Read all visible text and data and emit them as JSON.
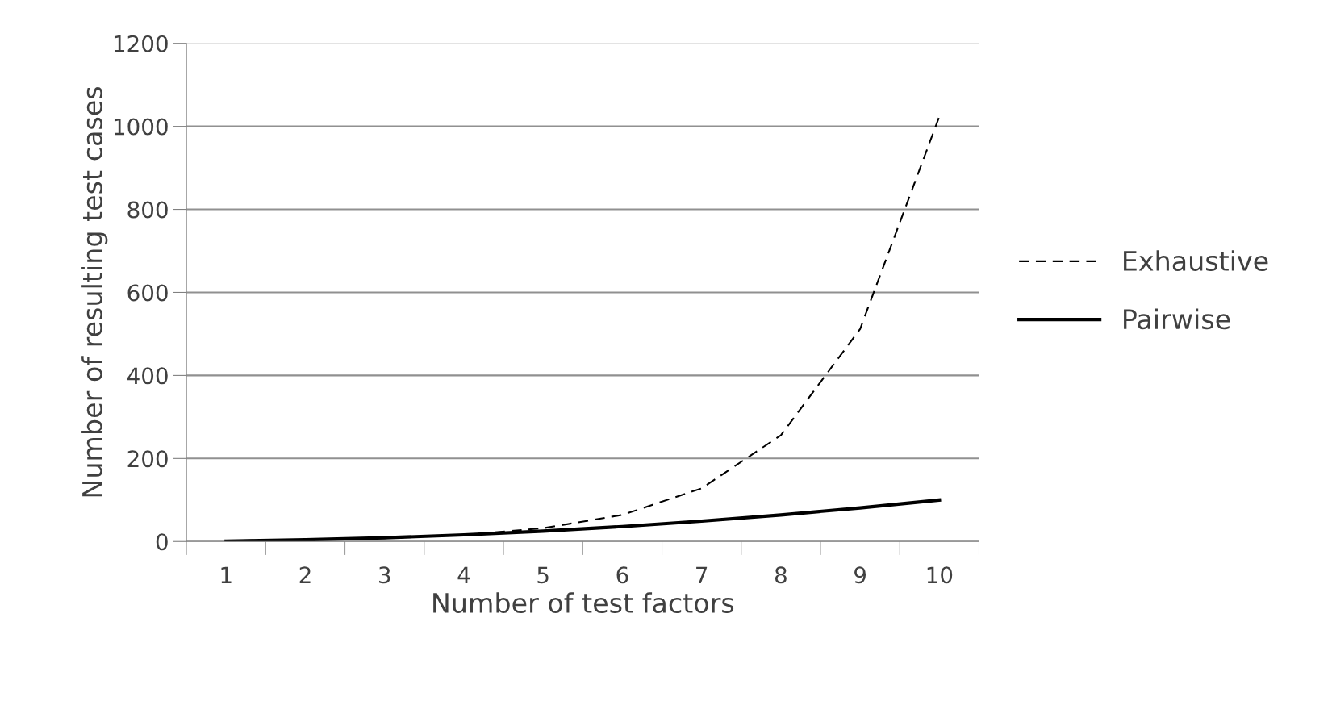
{
  "chart_data": {
    "type": "line",
    "xlabel": "Number of test factors",
    "ylabel": "Number of resulting test cases",
    "categories": [
      "1",
      "2",
      "3",
      "4",
      "5",
      "6",
      "7",
      "8",
      "9",
      "10"
    ],
    "series": [
      {
        "name": "Exhaustive",
        "color": "#000000",
        "line_style": "dashed",
        "values": [
          2,
          4,
          8,
          16,
          32,
          64,
          128,
          256,
          512,
          1024
        ]
      },
      {
        "name": "Pairwise",
        "color": "#000000",
        "line_style": "solid",
        "values": [
          1,
          4,
          9,
          16,
          25,
          36,
          49,
          64,
          81,
          100
        ]
      }
    ],
    "ylim": [
      0,
      1200
    ],
    "yticks": [
      0,
      200,
      400,
      600,
      800,
      1000,
      1200
    ],
    "grid": "y",
    "legend": "right",
    "marker": "none"
  }
}
